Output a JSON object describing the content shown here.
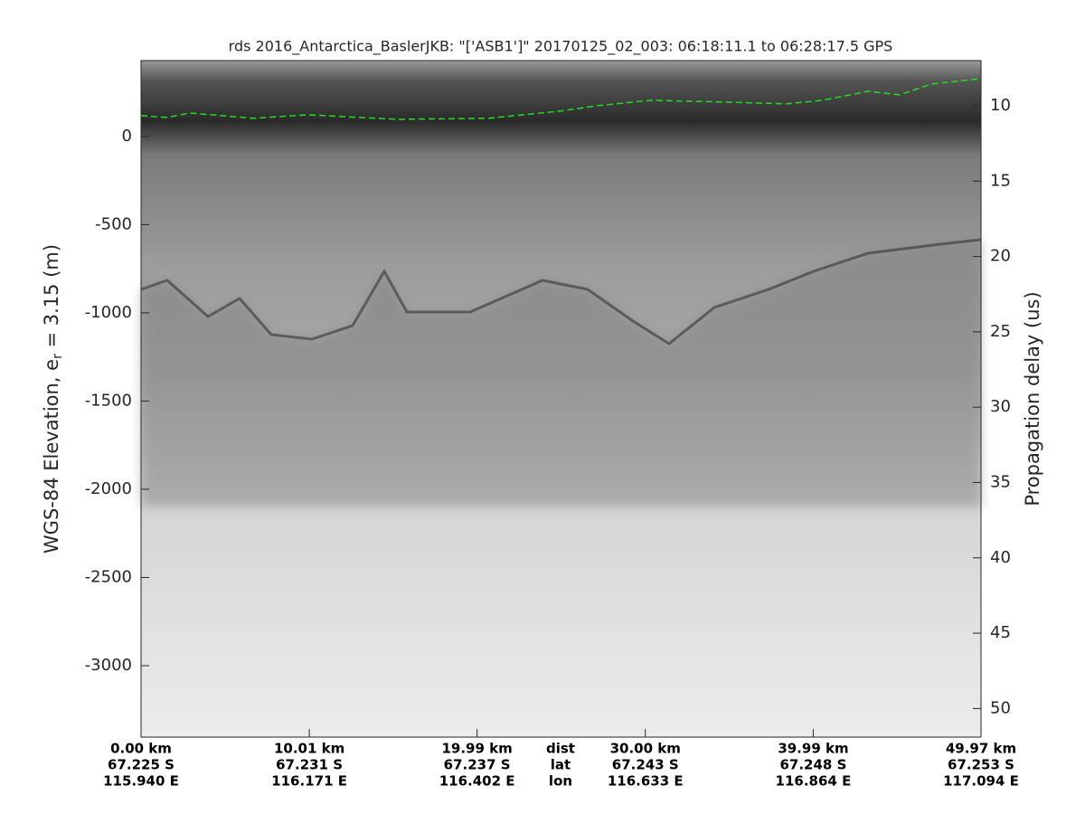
{
  "chart_data": {
    "type": "echogram",
    "title": "rds 2016_Antarctica_BaslerJKB: \"['ASB1']\"  20170125_02_003: 06:18:11.1 to 06:28:17.5 GPS",
    "ylabel": "WGS-84 Elevation, e",
    "ylabel_sub": "r",
    "ylabel_end": " = 3.15 (m)",
    "y2label": "Propagation delay (us)",
    "xlim": [
      0,
      49.97
    ],
    "ylim": [
      -3405,
      430
    ],
    "y2lim": [
      51.9,
      7.0
    ],
    "yticks": [
      0,
      -500,
      -1000,
      -1500,
      -2000,
      -2500,
      -3000
    ],
    "y2ticks": [
      10,
      15,
      20,
      25,
      30,
      35,
      40,
      45,
      50
    ],
    "xticks": [
      {
        "value": 0,
        "label": "0.00 km"
      },
      {
        "value": 10.01,
        "label": "10.01 km"
      },
      {
        "value": 19.99,
        "label": "19.99 km"
      },
      {
        "value": 30.0,
        "label": "30.00 km"
      },
      {
        "value": 39.99,
        "label": "39.99 km"
      },
      {
        "value": 49.97,
        "label": "49.97 km"
      }
    ],
    "lat_labels": [
      "67.225 S",
      "67.231 S",
      "67.237 S",
      "67.243 S",
      "67.248 S",
      "67.253 S"
    ],
    "lon_labels": [
      "115.940 E",
      "116.171 E",
      "116.402 E",
      "116.633 E",
      "116.864 E",
      "117.094 E"
    ],
    "row_labels": [
      "dist",
      "lat",
      "lon"
    ],
    "series": [
      {
        "color": "#22dd22",
        "x": [
          0,
          1.56,
          2.9,
          6.67,
          9.9,
          15.28,
          20.65,
          24.96,
          27.11,
          30.34,
          34.64,
          38.41,
          40.56,
          43.25,
          45.13,
          47.01,
          49.97
        ],
        "values": [
          118,
          108,
          133,
          103,
          123,
          97,
          103,
          144,
          174,
          205,
          195,
          185,
          205,
          256,
          236,
          297,
          328
        ]
      }
    ]
  }
}
